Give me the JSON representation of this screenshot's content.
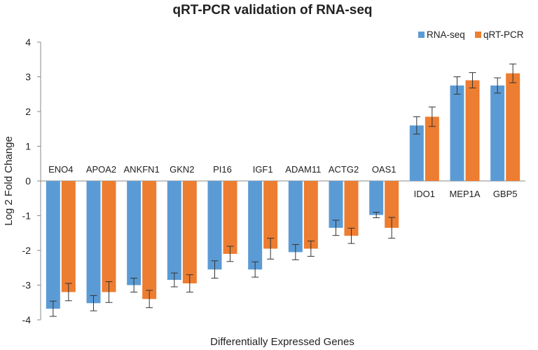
{
  "chart_data": {
    "type": "bar",
    "title": "qRT-PCR validation of RNA-seq",
    "xlabel": "Differentially Expressed Genes",
    "ylabel": "Log 2 Fold Change",
    "ylim": [
      -4,
      4
    ],
    "yticks": [
      4,
      3,
      2,
      1,
      0,
      -1,
      -2,
      -3,
      -4
    ],
    "categories": [
      "ENO4",
      "APOA2",
      "ANKFN1",
      "GKN2",
      "PI16",
      "IGF1",
      "ADAM11",
      "ACTG2",
      "OAS1",
      "IDO1",
      "MEP1A",
      "GBP5"
    ],
    "series": [
      {
        "name": "RNA-seq",
        "color": "#5b9bd5",
        "values": [
          -3.68,
          -3.52,
          -3.0,
          -2.85,
          -2.55,
          -2.55,
          -2.05,
          -1.35,
          -0.98,
          1.6,
          2.75,
          2.75
        ],
        "errors": [
          0.22,
          0.22,
          0.2,
          0.2,
          0.25,
          0.22,
          0.22,
          0.22,
          0.08,
          0.25,
          0.25,
          0.22
        ]
      },
      {
        "name": "qRT-PCR",
        "color": "#ed7d31",
        "values": [
          -3.2,
          -3.2,
          -3.4,
          -2.95,
          -2.1,
          -1.95,
          -1.95,
          -1.58,
          -1.35,
          1.85,
          2.9,
          3.1
        ],
        "errors": [
          0.25,
          0.3,
          0.25,
          0.25,
          0.22,
          0.3,
          0.22,
          0.22,
          0.3,
          0.28,
          0.22,
          0.27
        ]
      }
    ],
    "legend": "top-right",
    "grid": false
  }
}
